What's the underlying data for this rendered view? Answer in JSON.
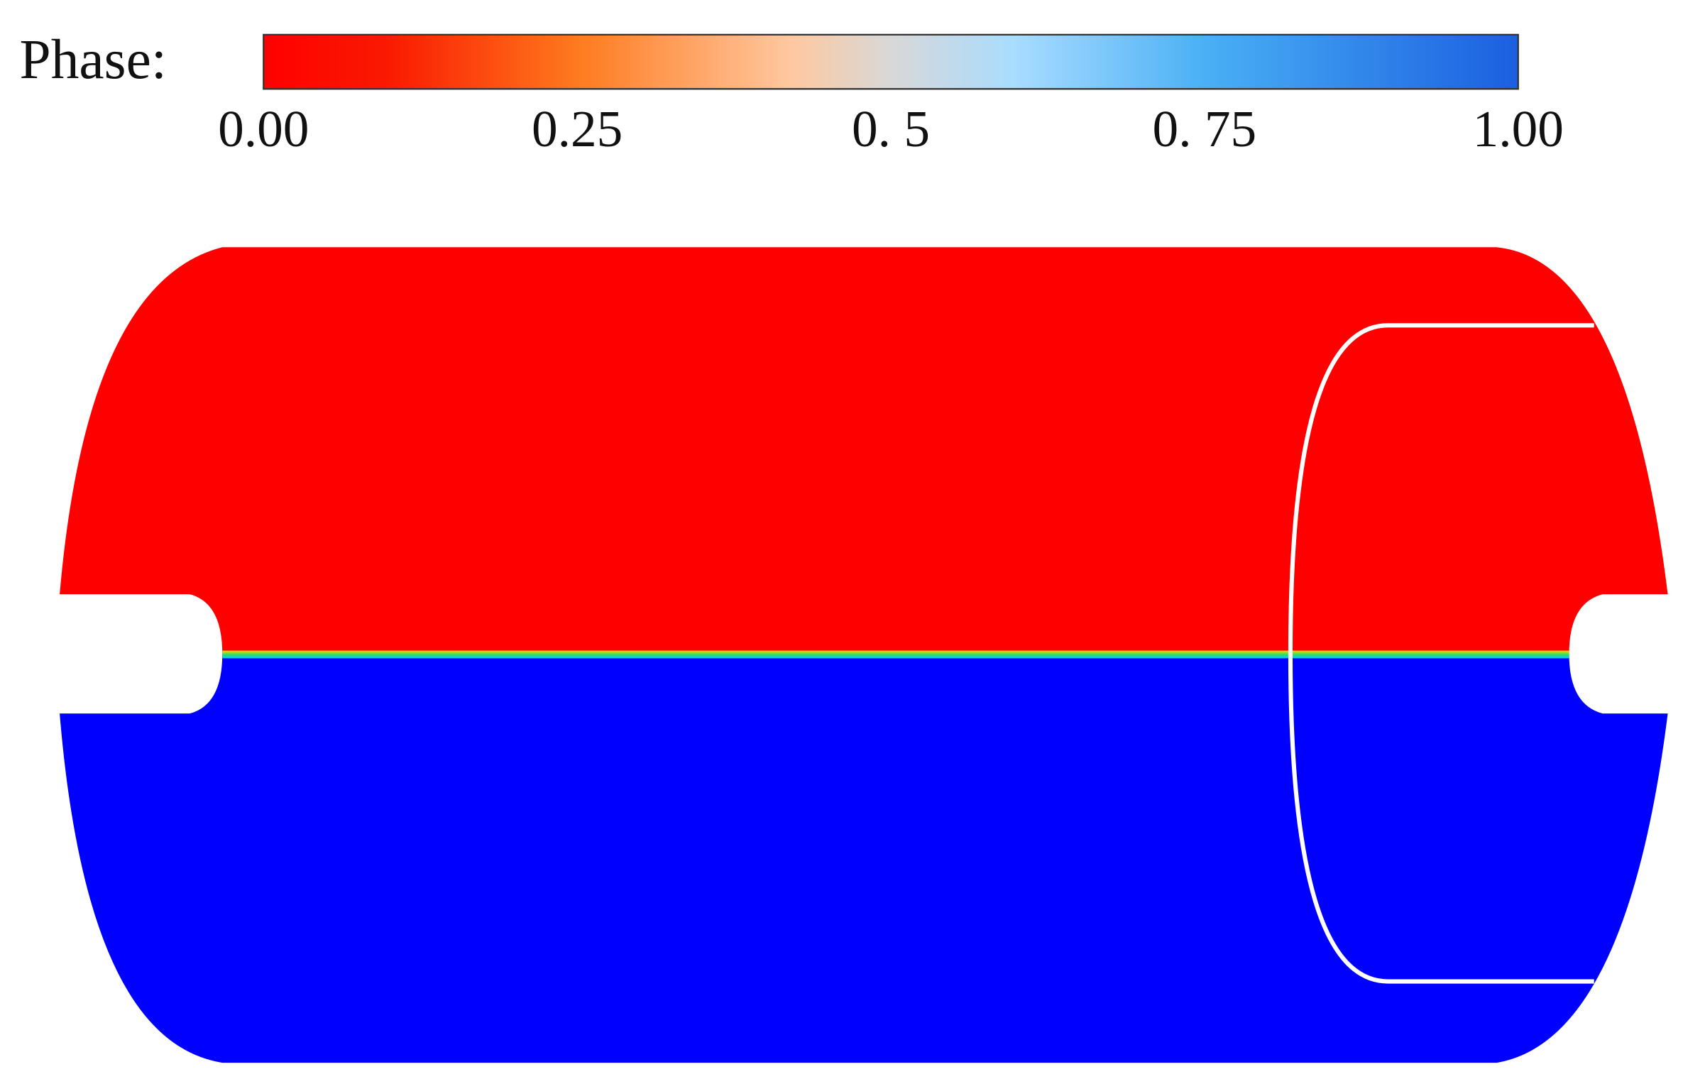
{
  "colorbar": {
    "title": "Phase:",
    "lim": [
      0,
      1
    ],
    "ticks": [
      {
        "value": 0,
        "label": "0.00"
      },
      {
        "value": 0.25,
        "label": "0.25"
      },
      {
        "value": 0.5,
        "label": "0. 5"
      },
      {
        "value": 0.75,
        "label": "0. 75"
      },
      {
        "value": 1,
        "label": "1.00"
      }
    ]
  }
}
